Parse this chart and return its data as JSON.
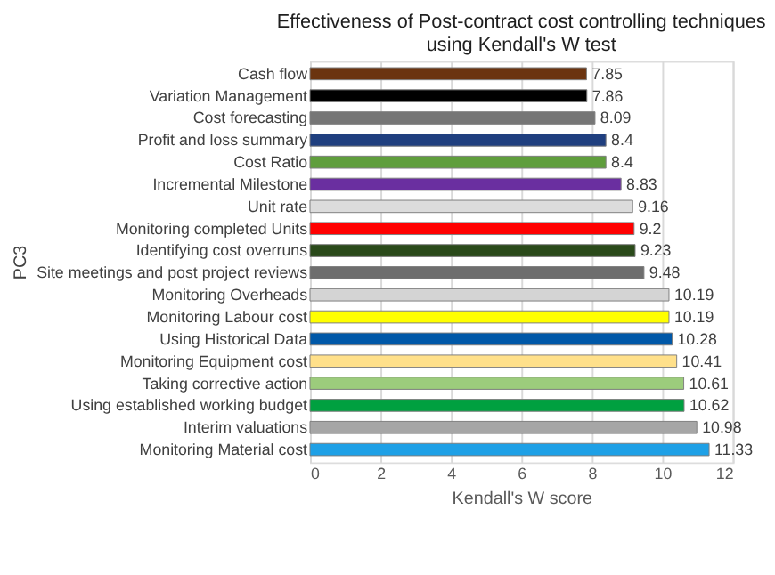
{
  "chart_data": {
    "type": "bar",
    "orientation": "horizontal",
    "title": [
      "Effectiveness of Post-contract cost controlling techniques",
      "using Kendall's W test"
    ],
    "xlabel": "Kendall's W score",
    "ylabel": "PC3",
    "categories": [
      "Cash flow",
      "Variation Management",
      "Cost forecasting",
      "Profit and loss summary",
      "Cost Ratio",
      "Incremental Milestone",
      "Unit rate",
      "Monitoring completed Units",
      "Identifying cost overruns",
      "Site meetings and post project reviews",
      "Monitoring Overheads",
      "Monitoring Labour cost",
      "Using Historical Data",
      "Monitoring Equipment cost",
      "Taking corrective action",
      "Using established working budget",
      "Interim valuations",
      "Monitoring Material cost"
    ],
    "values": [
      7.85,
      7.86,
      8.09,
      8.4,
      8.4,
      8.83,
      9.16,
      9.2,
      9.23,
      9.48,
      10.19,
      10.19,
      10.28,
      10.41,
      10.61,
      10.62,
      10.98,
      11.33
    ],
    "colors": [
      "#6b3410",
      "#000000",
      "#767676",
      "#1f3f7f",
      "#5f9e3c",
      "#6a2fa0",
      "#dcdcdc",
      "#ff0000",
      "#2a4a1a",
      "#6e6e6e",
      "#d4d4d4",
      "#ffff00",
      "#0058a8",
      "#ffe08a",
      "#9ccc7c",
      "#00a040",
      "#a6a6a6",
      "#1ea0e6"
    ],
    "xlim": [
      0,
      12
    ],
    "xticks": [
      0,
      2,
      4,
      6,
      8,
      10,
      12
    ],
    "grid": "x",
    "data_labels": true
  }
}
